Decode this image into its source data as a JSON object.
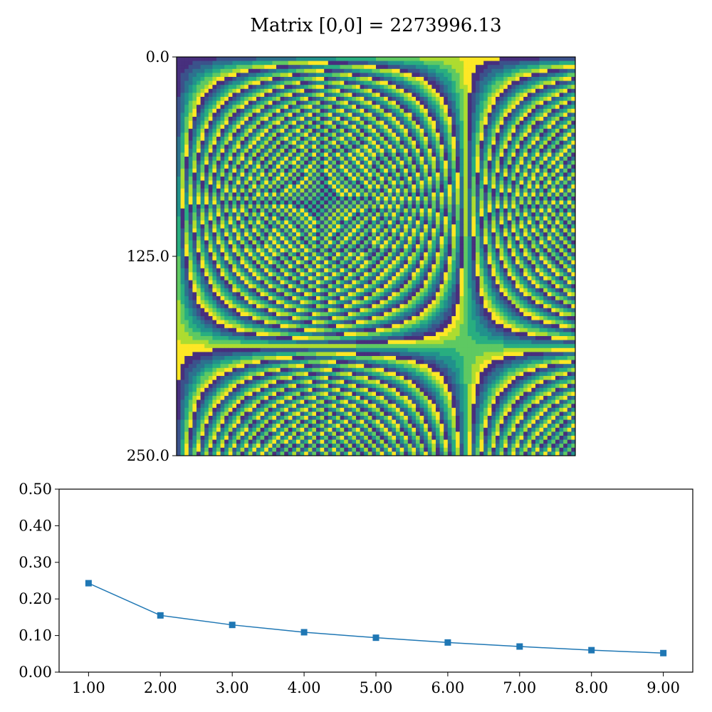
{
  "chart_data": [
    {
      "type": "heatmap",
      "title": "Matrix [0,0] = 2273996.13",
      "xlabel": "",
      "ylabel": "",
      "xticks_visible": false,
      "yticks": [
        "0.0",
        "125.0",
        "250.0"
      ],
      "ylim": [
        0,
        250
      ],
      "xlim": [
        0,
        250
      ],
      "colormap": [
        "#472f7d",
        "#3b528b",
        "#2c728e",
        "#21918c",
        "#28ae80",
        "#5ec962",
        "#addc30",
        "#fde725"
      ],
      "shape": "banded rings curving from the top-left corner; value ~ x*y, wrapping every 8 colour levels",
      "grid": false
    },
    {
      "type": "line",
      "title": "",
      "xlabel": "",
      "ylabel": "",
      "x": [
        1,
        2,
        3,
        4,
        5,
        6,
        7,
        8,
        9
      ],
      "y": [
        0.243,
        0.155,
        0.129,
        0.109,
        0.094,
        0.081,
        0.07,
        0.06,
        0.052
      ],
      "xlim": [
        0.59,
        9.41
      ],
      "ylim": [
        0,
        0.5
      ],
      "xticks": [
        "1.00",
        "2.00",
        "3.00",
        "4.00",
        "5.00",
        "6.00",
        "7.00",
        "8.00",
        "9.00"
      ],
      "yticks": [
        "0.00",
        "0.10",
        "0.20",
        "0.30",
        "0.40",
        "0.50"
      ],
      "marker": "square",
      "color": "#1f77b4",
      "grid": false
    }
  ]
}
